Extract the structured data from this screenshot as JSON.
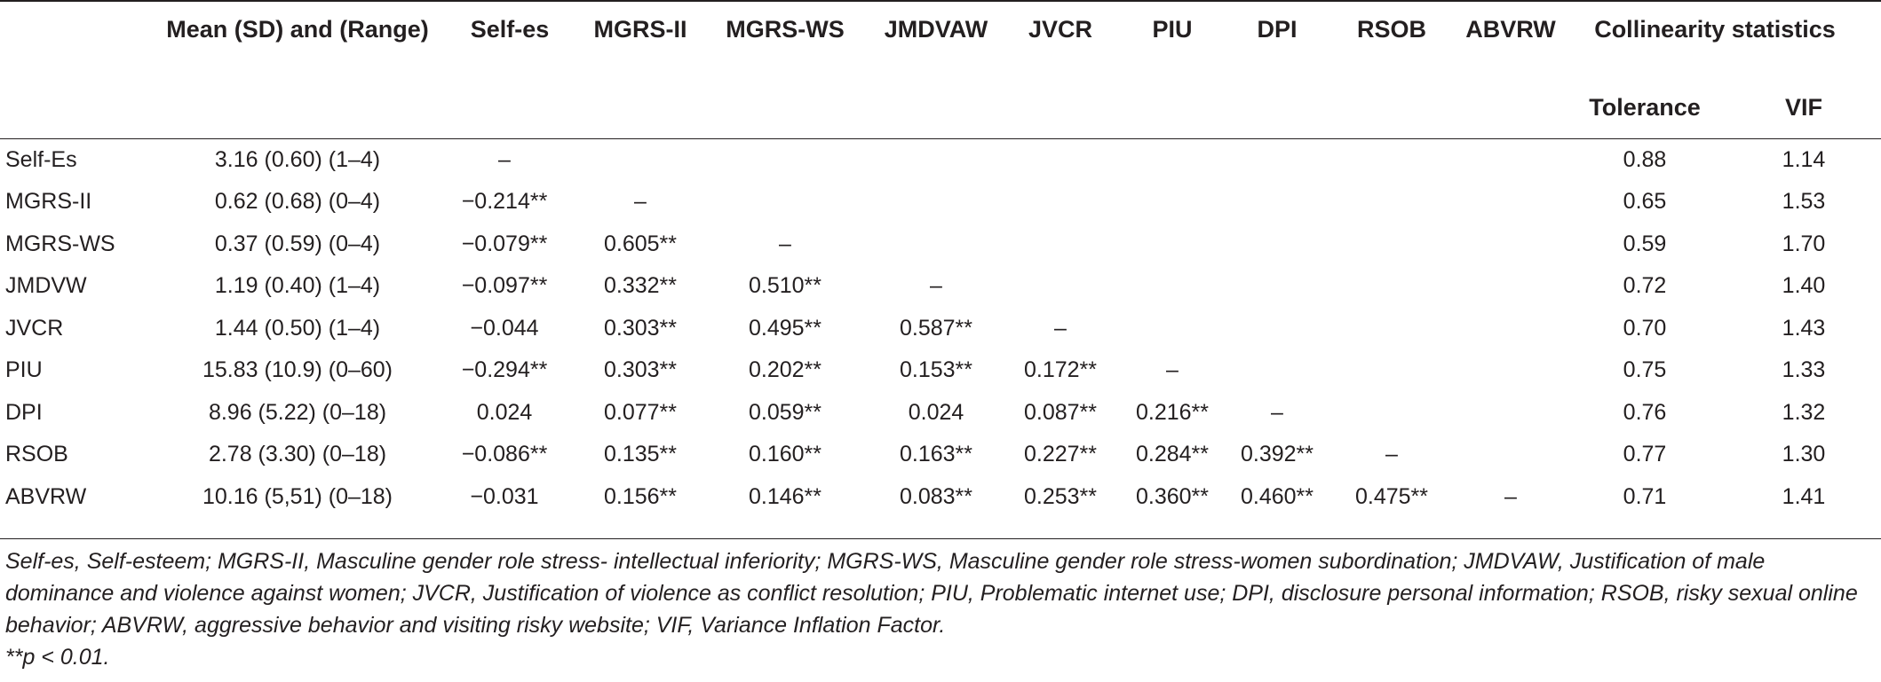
{
  "table": {
    "headers": {
      "mean": "Mean (SD) and (Range)",
      "self_es": "Self-es",
      "mgrs_ii": "MGRS-II",
      "mgrs_ws": "MGRS-WS",
      "jmdvaw": "JMDVAW",
      "jvcr": "JVCR",
      "piu": "PIU",
      "dpi": "DPI",
      "rsob": "RSOB",
      "abvrw": "ABVRW",
      "collinearity": "Collinearity statistics",
      "tolerance": "Tolerance",
      "vif": "VIF"
    },
    "rows": [
      {
        "label": "Self-Es",
        "mean": "3.16 (0.60) (1–4)",
        "cells": [
          "–",
          "",
          "",
          "",
          "",
          "",
          "",
          "",
          ""
        ],
        "tolerance": "0.88",
        "vif": "1.14"
      },
      {
        "label": "MGRS-II",
        "mean": "0.62 (0.68) (0–4)",
        "cells": [
          "−0.214**",
          "–",
          "",
          "",
          "",
          "",
          "",
          "",
          ""
        ],
        "tolerance": "0.65",
        "vif": "1.53"
      },
      {
        "label": "MGRS-WS",
        "mean": "0.37 (0.59) (0–4)",
        "cells": [
          "−0.079**",
          "0.605**",
          "–",
          "",
          "",
          "",
          "",
          "",
          ""
        ],
        "tolerance": "0.59",
        "vif": "1.70"
      },
      {
        "label": "JMDVW",
        "mean": "1.19 (0.40) (1–4)",
        "cells": [
          "−0.097**",
          "0.332**",
          "0.510**",
          "–",
          "",
          "",
          "",
          "",
          ""
        ],
        "tolerance": "0.72",
        "vif": "1.40"
      },
      {
        "label": "JVCR",
        "mean": "1.44 (0.50) (1–4)",
        "cells": [
          "−0.044",
          "0.303**",
          "0.495**",
          "0.587**",
          "–",
          "",
          "",
          "",
          ""
        ],
        "tolerance": "0.70",
        "vif": "1.43"
      },
      {
        "label": "PIU",
        "mean": "15.83 (10.9) (0–60)",
        "cells": [
          "−0.294**",
          "0.303**",
          "0.202**",
          "0.153**",
          "0.172**",
          "–",
          "",
          "",
          ""
        ],
        "tolerance": "0.75",
        "vif": "1.33"
      },
      {
        "label": "DPI",
        "mean": "8.96 (5.22) (0–18)",
        "cells": [
          "0.024",
          "0.077**",
          "0.059**",
          "0.024",
          "0.087**",
          "0.216**",
          "–",
          "",
          ""
        ],
        "tolerance": "0.76",
        "vif": "1.32"
      },
      {
        "label": "RSOB",
        "mean": "2.78 (3.30) (0–18)",
        "cells": [
          "−0.086**",
          "0.135**",
          "0.160**",
          "0.163**",
          "0.227**",
          "0.284**",
          "0.392**",
          "–",
          ""
        ],
        "tolerance": "0.77",
        "vif": "1.30"
      },
      {
        "label": "ABVRW",
        "mean": "10.16 (5,51) (0–18)",
        "cells": [
          "−0.031",
          "0.156**",
          "0.146**",
          "0.083**",
          "0.253**",
          "0.360**",
          "0.460**",
          "0.475**",
          "–"
        ],
        "tolerance": "0.71",
        "vif": "1.41"
      }
    ]
  },
  "footnote": {
    "abbreviations": "Self-es, Self-esteem; MGRS-II, Masculine gender role stress- intellectual inferiority; MGRS-WS, Masculine gender role stress-women subordination; JMDVAW, Justification of male dominance and violence against women; JVCR, Justification of violence as conflict resolution; PIU, Problematic internet use; DPI, disclosure personal information; RSOB, risky sexual online behavior; ABVRW, aggressive behavior and visiting risky website; VIF, Variance Inflation Factor.",
    "significance": "**p < 0.01."
  }
}
